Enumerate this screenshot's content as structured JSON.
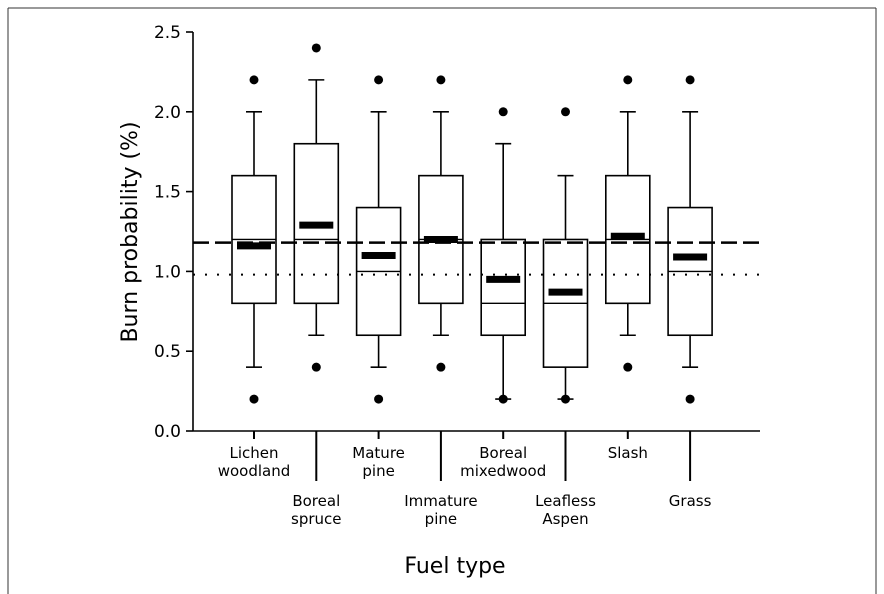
{
  "chart_data": {
    "type": "box",
    "title": "",
    "xlabel": "Fuel type",
    "ylabel": "Burn probability (%)",
    "ylim": [
      0,
      2.5
    ],
    "yticks": [
      0.0,
      0.5,
      1.0,
      1.5,
      2.0,
      2.5
    ],
    "ytick_labels": [
      "0.0",
      "0.5",
      "1.0",
      "1.5",
      "2.0",
      "2.5"
    ],
    "grid": false,
    "categories": [
      {
        "label": [
          "Lichen",
          "woodland"
        ],
        "whisker_low": 0.4,
        "q1": 0.8,
        "median": 1.2,
        "q3": 1.6,
        "whisker_high": 2.0,
        "outliers": [
          0.2,
          2.2
        ],
        "mean": 1.16,
        "label_position": "top"
      },
      {
        "label": [
          "Boreal",
          "spruce"
        ],
        "whisker_low": 0.6,
        "q1": 0.8,
        "median": 1.2,
        "q3": 1.8,
        "whisker_high": 2.2,
        "outliers": [
          0.4,
          2.4
        ],
        "mean": 1.29,
        "label_position": "bottom"
      },
      {
        "label": [
          "Mature",
          "pine"
        ],
        "whisker_low": 0.4,
        "q1": 0.6,
        "median": 1.0,
        "q3": 1.4,
        "whisker_high": 2.0,
        "outliers": [
          0.2,
          2.2
        ],
        "mean": 1.1,
        "label_position": "top"
      },
      {
        "label": [
          "Immature",
          "pine"
        ],
        "whisker_low": 0.6,
        "q1": 0.8,
        "median": 1.2,
        "q3": 1.6,
        "whisker_high": 2.0,
        "outliers": [
          0.4,
          2.2
        ],
        "mean": 1.2,
        "label_position": "bottom"
      },
      {
        "label": [
          "Boreal",
          "mixedwood"
        ],
        "whisker_low": 0.2,
        "q1": 0.6,
        "median": 0.8,
        "q3": 1.2,
        "whisker_high": 1.8,
        "outliers": [
          0.2,
          2.0
        ],
        "mean": 0.95,
        "label_position": "top"
      },
      {
        "label": [
          "Leafless",
          "Aspen"
        ],
        "whisker_low": 0.2,
        "q1": 0.4,
        "median": 0.8,
        "q3": 1.2,
        "whisker_high": 1.6,
        "outliers": [
          0.2,
          2.0
        ],
        "mean": 0.87,
        "label_position": "bottom"
      },
      {
        "label": [
          "Slash"
        ],
        "whisker_low": 0.6,
        "q1": 0.8,
        "median": 1.2,
        "q3": 1.6,
        "whisker_high": 2.0,
        "outliers": [
          0.4,
          2.2
        ],
        "mean": 1.22,
        "label_position": "top"
      },
      {
        "label": [
          "Grass"
        ],
        "whisker_low": 0.4,
        "q1": 0.6,
        "median": 1.0,
        "q3": 1.4,
        "whisker_high": 2.0,
        "outliers": [
          0.2,
          2.2
        ],
        "mean": 1.09,
        "label_position": "bottom"
      }
    ],
    "reference_lines": [
      {
        "style": "dashed",
        "y": 1.18
      },
      {
        "style": "dotted",
        "y": 0.98
      }
    ]
  }
}
